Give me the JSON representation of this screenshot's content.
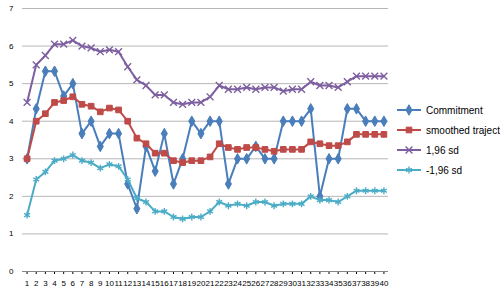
{
  "chart_data": {
    "type": "line",
    "x": [
      1,
      2,
      3,
      4,
      5,
      6,
      7,
      8,
      9,
      10,
      11,
      12,
      13,
      14,
      15,
      16,
      17,
      18,
      19,
      20,
      21,
      22,
      23,
      24,
      25,
      26,
      27,
      28,
      29,
      30,
      31,
      32,
      33,
      34,
      35,
      36,
      37,
      38,
      39,
      40
    ],
    "xlim": [
      0.5,
      40.5
    ],
    "xticks": [
      1,
      2,
      3,
      4,
      5,
      6,
      7,
      8,
      9,
      10,
      11,
      12,
      13,
      14,
      15,
      16,
      17,
      18,
      19,
      20,
      21,
      22,
      23,
      24,
      25,
      26,
      27,
      28,
      29,
      30,
      31,
      32,
      33,
      34,
      35,
      36,
      37,
      38,
      39,
      40
    ],
    "ylim": [
      0,
      7
    ],
    "yticks": [
      0,
      1,
      2,
      3,
      4,
      5,
      6,
      7
    ],
    "grid": true,
    "legend": "right",
    "series": [
      {
        "name": "Commitment",
        "color": "#4a7ebb",
        "marker": "diamond",
        "values": [
          3,
          4.33,
          5.33,
          5.33,
          4.67,
          5,
          3.67,
          4,
          3.33,
          3.67,
          3.67,
          2.33,
          1.67,
          3.33,
          2.67,
          3.67,
          2.33,
          3,
          4,
          3.67,
          4,
          4,
          2.33,
          3,
          3,
          3.33,
          3,
          3,
          4,
          4,
          4,
          4.33,
          2,
          3,
          3,
          4.33,
          4.33,
          4,
          4,
          4
        ]
      },
      {
        "name": "smoothed trajectory",
        "color": "#be4b48",
        "marker": "square",
        "values": [
          3,
          4,
          4.2,
          4.5,
          4.55,
          4.65,
          4.45,
          4.4,
          4.25,
          4.35,
          4.3,
          4,
          3.55,
          3.4,
          3.15,
          3.15,
          2.95,
          2.9,
          2.95,
          2.95,
          3.05,
          3.4,
          3.3,
          3.25,
          3.3,
          3.3,
          3.25,
          3.2,
          3.25,
          3.25,
          3.25,
          3.45,
          3.4,
          3.35,
          3.35,
          3.45,
          3.65,
          3.65,
          3.65,
          3.65
        ]
      },
      {
        "name": "1,96 sd",
        "color": "#7d5fa0",
        "marker": "x",
        "values": [
          4.5,
          5.5,
          5.75,
          6.05,
          6.05,
          6.15,
          6,
          5.95,
          5.85,
          5.9,
          5.85,
          5.45,
          5.1,
          4.95,
          4.7,
          4.7,
          4.5,
          4.45,
          4.5,
          4.5,
          4.65,
          4.95,
          4.85,
          4.85,
          4.9,
          4.85,
          4.9,
          4.9,
          4.8,
          4.85,
          4.85,
          5.05,
          4.95,
          4.95,
          4.9,
          5.05,
          5.2,
          5.2,
          5.2,
          5.2
        ]
      },
      {
        "name": "-1,96 sd",
        "color": "#4bacc6",
        "marker": "star",
        "values": [
          1.5,
          2.45,
          2.65,
          2.95,
          3,
          3.1,
          2.95,
          2.9,
          2.75,
          2.85,
          2.8,
          2.45,
          1.95,
          1.85,
          1.6,
          1.6,
          1.45,
          1.4,
          1.45,
          1.45,
          1.6,
          1.85,
          1.75,
          1.8,
          1.75,
          1.85,
          1.85,
          1.75,
          1.8,
          1.8,
          1.8,
          2,
          1.9,
          1.9,
          1.85,
          2,
          2.15,
          2.15,
          2.15,
          2.15
        ]
      }
    ]
  }
}
